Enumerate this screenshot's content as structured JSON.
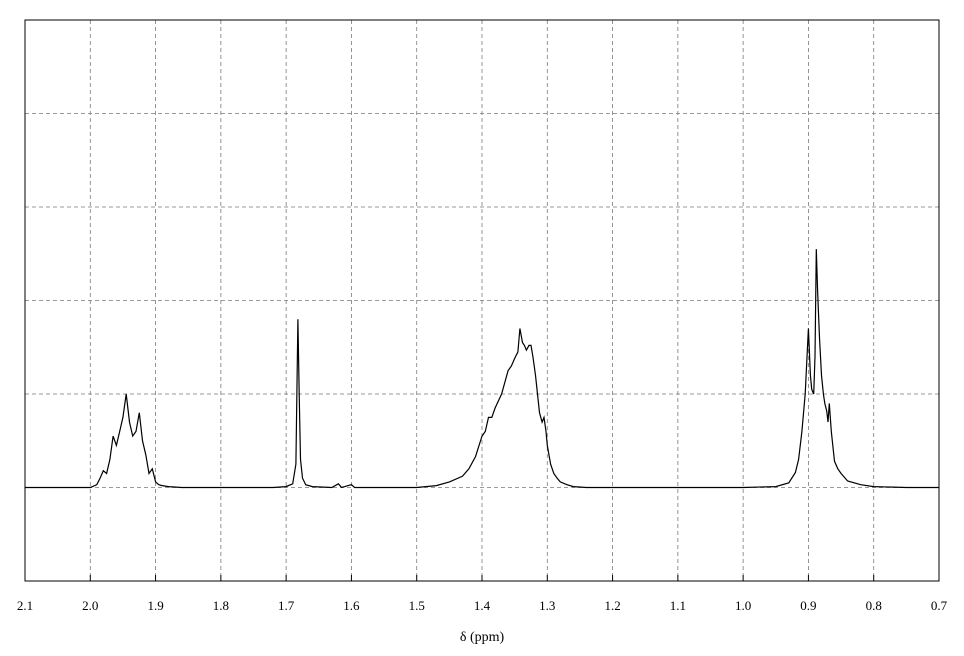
{
  "chart_data": {
    "type": "line",
    "title": "",
    "xlabel": "δ (ppm)",
    "ylabel": "",
    "xlim": [
      2.1,
      0.7
    ],
    "x_reversed": true,
    "ylim": [
      -1,
      5
    ],
    "grid": true,
    "legend": "none",
    "x_ticks": [
      "2.1",
      "2.0",
      "1.9",
      "1.8",
      "1.7",
      "1.6",
      "1.5",
      "1.4",
      "1.3",
      "1.2",
      "1.1",
      "1.0",
      "0.9",
      "0.8",
      "0.7"
    ],
    "line_color": "#000000",
    "grid_color": "#7a7a7a",
    "series": [
      {
        "x": [
          2.1,
          2.0,
          1.99,
          1.985,
          1.98,
          1.975,
          1.97,
          1.965,
          1.96,
          1.955,
          1.95,
          1.945,
          1.94,
          1.935,
          1.93,
          1.925,
          1.92,
          1.915,
          1.91,
          1.905,
          1.9,
          1.895,
          1.89,
          1.88,
          1.86,
          1.8,
          1.72,
          1.7,
          1.69,
          1.685,
          1.682,
          1.68,
          1.678,
          1.675,
          1.67,
          1.66,
          1.63,
          1.62,
          1.615,
          1.61,
          1.605,
          1.6,
          1.595,
          1.59,
          1.55,
          1.5,
          1.47,
          1.45,
          1.43,
          1.42,
          1.41,
          1.4,
          1.395,
          1.39,
          1.385,
          1.38,
          1.37,
          1.36,
          1.355,
          1.35,
          1.345,
          1.342,
          1.338,
          1.335,
          1.332,
          1.328,
          1.325,
          1.322,
          1.318,
          1.315,
          1.312,
          1.308,
          1.305,
          1.302,
          1.3,
          1.295,
          1.29,
          1.285,
          1.28,
          1.27,
          1.26,
          1.24,
          1.2,
          1.1,
          1.0,
          0.95,
          0.93,
          0.92,
          0.915,
          0.91,
          0.905,
          0.9,
          0.897,
          0.895,
          0.892,
          0.89,
          0.888,
          0.886,
          0.883,
          0.88,
          0.877,
          0.875,
          0.872,
          0.87,
          0.868,
          0.865,
          0.86,
          0.855,
          0.85,
          0.84,
          0.82,
          0.8,
          0.75,
          0.7
        ],
        "y": [
          0,
          0,
          0.03,
          0.1,
          0.18,
          0.15,
          0.3,
          0.55,
          0.45,
          0.6,
          0.75,
          1.0,
          0.7,
          0.55,
          0.6,
          0.8,
          0.5,
          0.35,
          0.15,
          0.2,
          0.06,
          0.03,
          0.02,
          0.01,
          0.0,
          0.0,
          0.0,
          0.01,
          0.04,
          0.25,
          1.8,
          1.0,
          0.3,
          0.1,
          0.03,
          0.01,
          0.0,
          0.04,
          0.0,
          0.01,
          0.02,
          0.03,
          0.0,
          0.0,
          0.0,
          0.0,
          0.02,
          0.06,
          0.12,
          0.2,
          0.33,
          0.55,
          0.6,
          0.75,
          0.75,
          0.85,
          1.0,
          1.25,
          1.3,
          1.38,
          1.45,
          1.7,
          1.55,
          1.52,
          1.47,
          1.52,
          1.52,
          1.4,
          1.2,
          1.0,
          0.8,
          0.7,
          0.75,
          0.6,
          0.45,
          0.25,
          0.15,
          0.1,
          0.06,
          0.03,
          0.01,
          0.0,
          0.0,
          0.0,
          0.0,
          0.01,
          0.05,
          0.16,
          0.3,
          0.6,
          1.0,
          1.7,
          1.2,
          1.05,
          1.0,
          1.4,
          2.55,
          2.1,
          1.6,
          1.2,
          1.0,
          0.9,
          0.82,
          0.7,
          0.9,
          0.6,
          0.28,
          0.2,
          0.15,
          0.07,
          0.03,
          0.01,
          0.0,
          0.0
        ]
      }
    ]
  }
}
